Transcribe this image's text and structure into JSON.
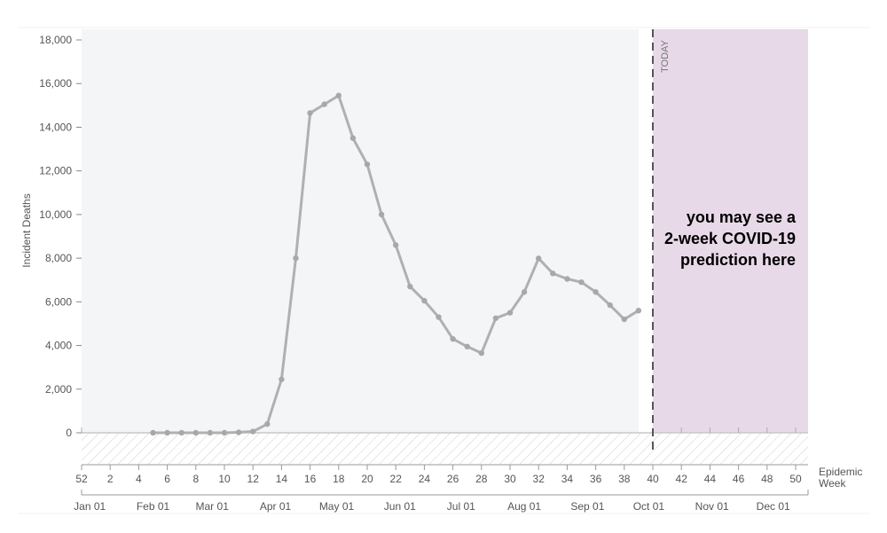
{
  "chart_data": {
    "type": "line",
    "ylabel": "Incident Deaths",
    "xlabel": "Epidemic Week",
    "ylim": [
      0,
      18000
    ],
    "xlim_weeks": [
      52,
      51
    ],
    "y_ticks": [
      "0",
      "2,000",
      "4,000",
      "6,000",
      "8,000",
      "10,000",
      "12,000",
      "14,000",
      "16,000",
      "18,000"
    ],
    "y_tick_values": [
      0,
      2000,
      4000,
      6000,
      8000,
      10000,
      12000,
      14000,
      16000,
      18000
    ],
    "week_ticks": [
      "52",
      "2",
      "4",
      "6",
      "8",
      "10",
      "12",
      "14",
      "16",
      "18",
      "20",
      "22",
      "24",
      "26",
      "28",
      "30",
      "32",
      "34",
      "36",
      "38",
      "40",
      "42",
      "44",
      "46",
      "48",
      "50"
    ],
    "month_ticks": [
      "Jan 01",
      "Feb 01",
      "Mar 01",
      "Apr 01",
      "May 01",
      "Jun 01",
      "Jul 01",
      "Aug 01",
      "Sep 01",
      "Oct 01",
      "Nov 01",
      "Dec 01"
    ],
    "today_week": 40,
    "today_label": "TODAY",
    "annotation": [
      "you may see a",
      "2-week COVID-19",
      "prediction here"
    ],
    "series": [
      {
        "color": "#b0b0b0",
        "x": [
          5,
          6,
          7,
          8,
          9,
          10,
          11,
          12,
          13,
          14,
          15,
          16,
          17,
          18,
          19,
          20,
          21,
          22,
          23,
          24,
          25,
          26,
          27,
          28,
          29,
          30,
          31,
          32,
          33,
          34,
          35,
          36,
          37,
          38,
          39
        ],
        "values": [
          0,
          0,
          0,
          0,
          0,
          0,
          20,
          60,
          400,
          2450,
          8000,
          14650,
          15050,
          15450,
          13500,
          12300,
          10000,
          8600,
          6700,
          6050,
          5300,
          4300,
          3950,
          3650,
          5250,
          5500,
          6450,
          7990,
          7300,
          7050,
          6900,
          6450,
          5850,
          5200,
          5600
        ]
      }
    ],
    "colors": {
      "plot_background": "#f4f5f7",
      "prediction_region": "#e8d9e9",
      "line": "#b0b0b0",
      "today_line": "#555555"
    }
  }
}
